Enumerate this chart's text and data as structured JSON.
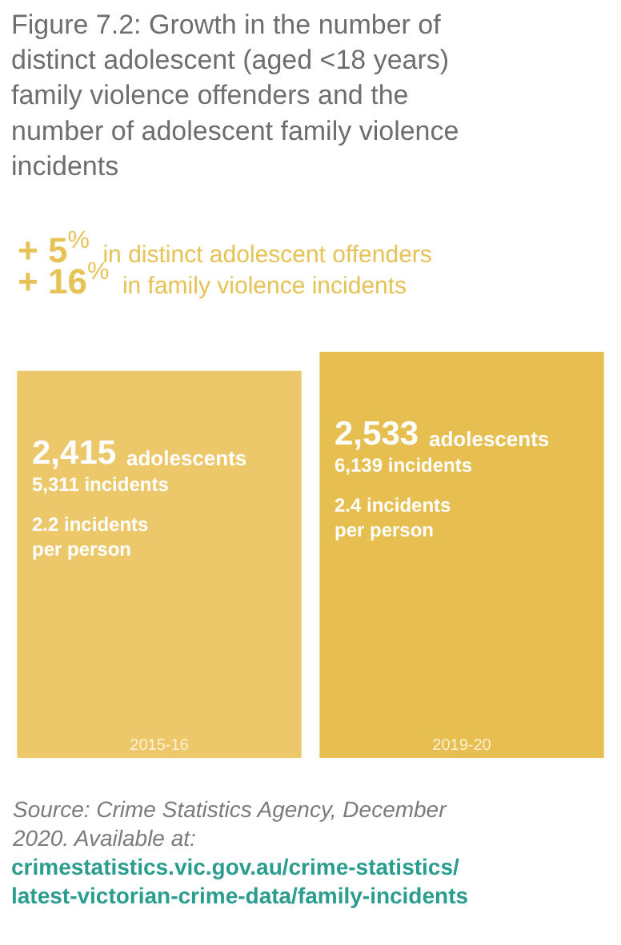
{
  "chart_data": {
    "type": "bar",
    "title": "Figure 7.2: Growth in the number of distinct adolescent (aged <18 years) family violence offenders and the number of adolescent family violence incidents",
    "subtitle": "+ 5$^{%}$ in distinct adolescent offenders\n+ 16$^{%}$ in family violence incidents",
    "categories": [
      "2015-16",
      "2019-20"
    ],
    "values": [
      2415,
      2533
    ],
    "colors": [
      "#ecc86b",
      "#e6bf50"
    ],
    "value_labels": [
      "2,415",
      "2,533"
    ],
    "annotations": [
      "adolescents",
      "5,311 incidents",
      "2.2 incidents\nper person",
      "adolescents",
      "6,139 incidents",
      "2.4 incidents\nper person",
      "Source: Crime Statistics Agency, December 2020. Available at:",
      "crimestatistics.vic.gov.au/crime-statistics/latest-victorian-crime-data/family-incidents"
    ],
    "legend": false
  }
}
